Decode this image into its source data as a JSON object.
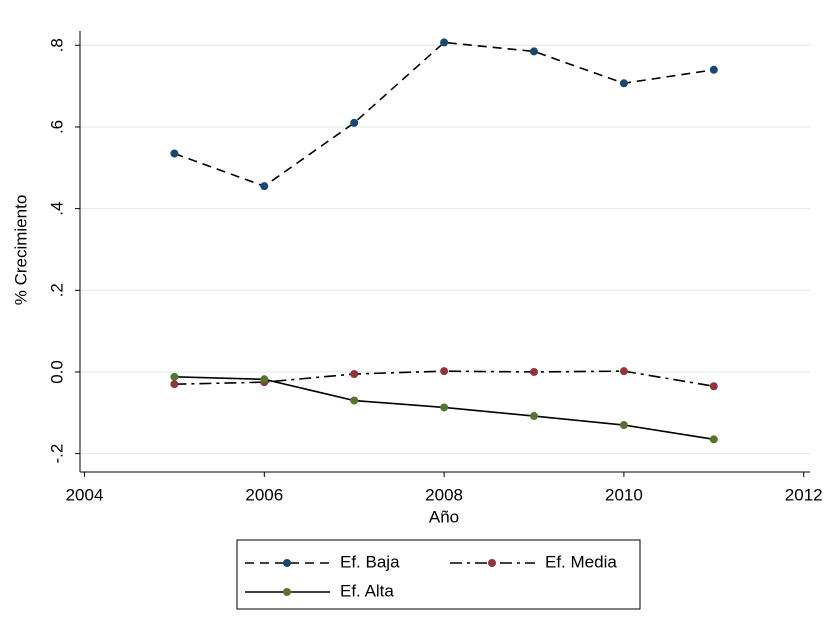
{
  "chart_data": {
    "type": "line",
    "x_label": "Año",
    "y_label": "% Crecimiento",
    "x": [
      2005,
      2006,
      2007,
      2008,
      2009,
      2010,
      2011
    ],
    "series": [
      {
        "name": "Ef. Baja",
        "color": "#1a476f",
        "style": "dash",
        "values": [
          0.535,
          0.455,
          0.61,
          0.807,
          0.785,
          0.707,
          0.74
        ]
      },
      {
        "name": "Ef. Media",
        "color": "#90353b",
        "style": "dashdot",
        "values": [
          -0.03,
          -0.025,
          -0.005,
          0.002,
          0.0,
          0.002,
          -0.035
        ]
      },
      {
        "name": "Ef. Alta",
        "color": "#55752f",
        "style": "solid",
        "values": [
          -0.012,
          -0.018,
          -0.07,
          -0.087,
          -0.108,
          -0.13,
          -0.165
        ]
      }
    ],
    "xlim": [
      2003.95,
      2012.07
    ],
    "xticks": [
      2004,
      2006,
      2008,
      2010,
      2012
    ],
    "ylim": [
      -0.245,
      0.835
    ],
    "yticks": [
      {
        "value": -0.2,
        "label": "-.2"
      },
      {
        "value": 0,
        "label": "0.0"
      },
      {
        "value": 0.2,
        "label": ".2"
      },
      {
        "value": 0.4,
        "label": ".4"
      },
      {
        "value": 0.6,
        "label": ".6"
      },
      {
        "value": 0.8,
        "label": ".8"
      }
    ],
    "grid": true,
    "legend": "bottom"
  }
}
